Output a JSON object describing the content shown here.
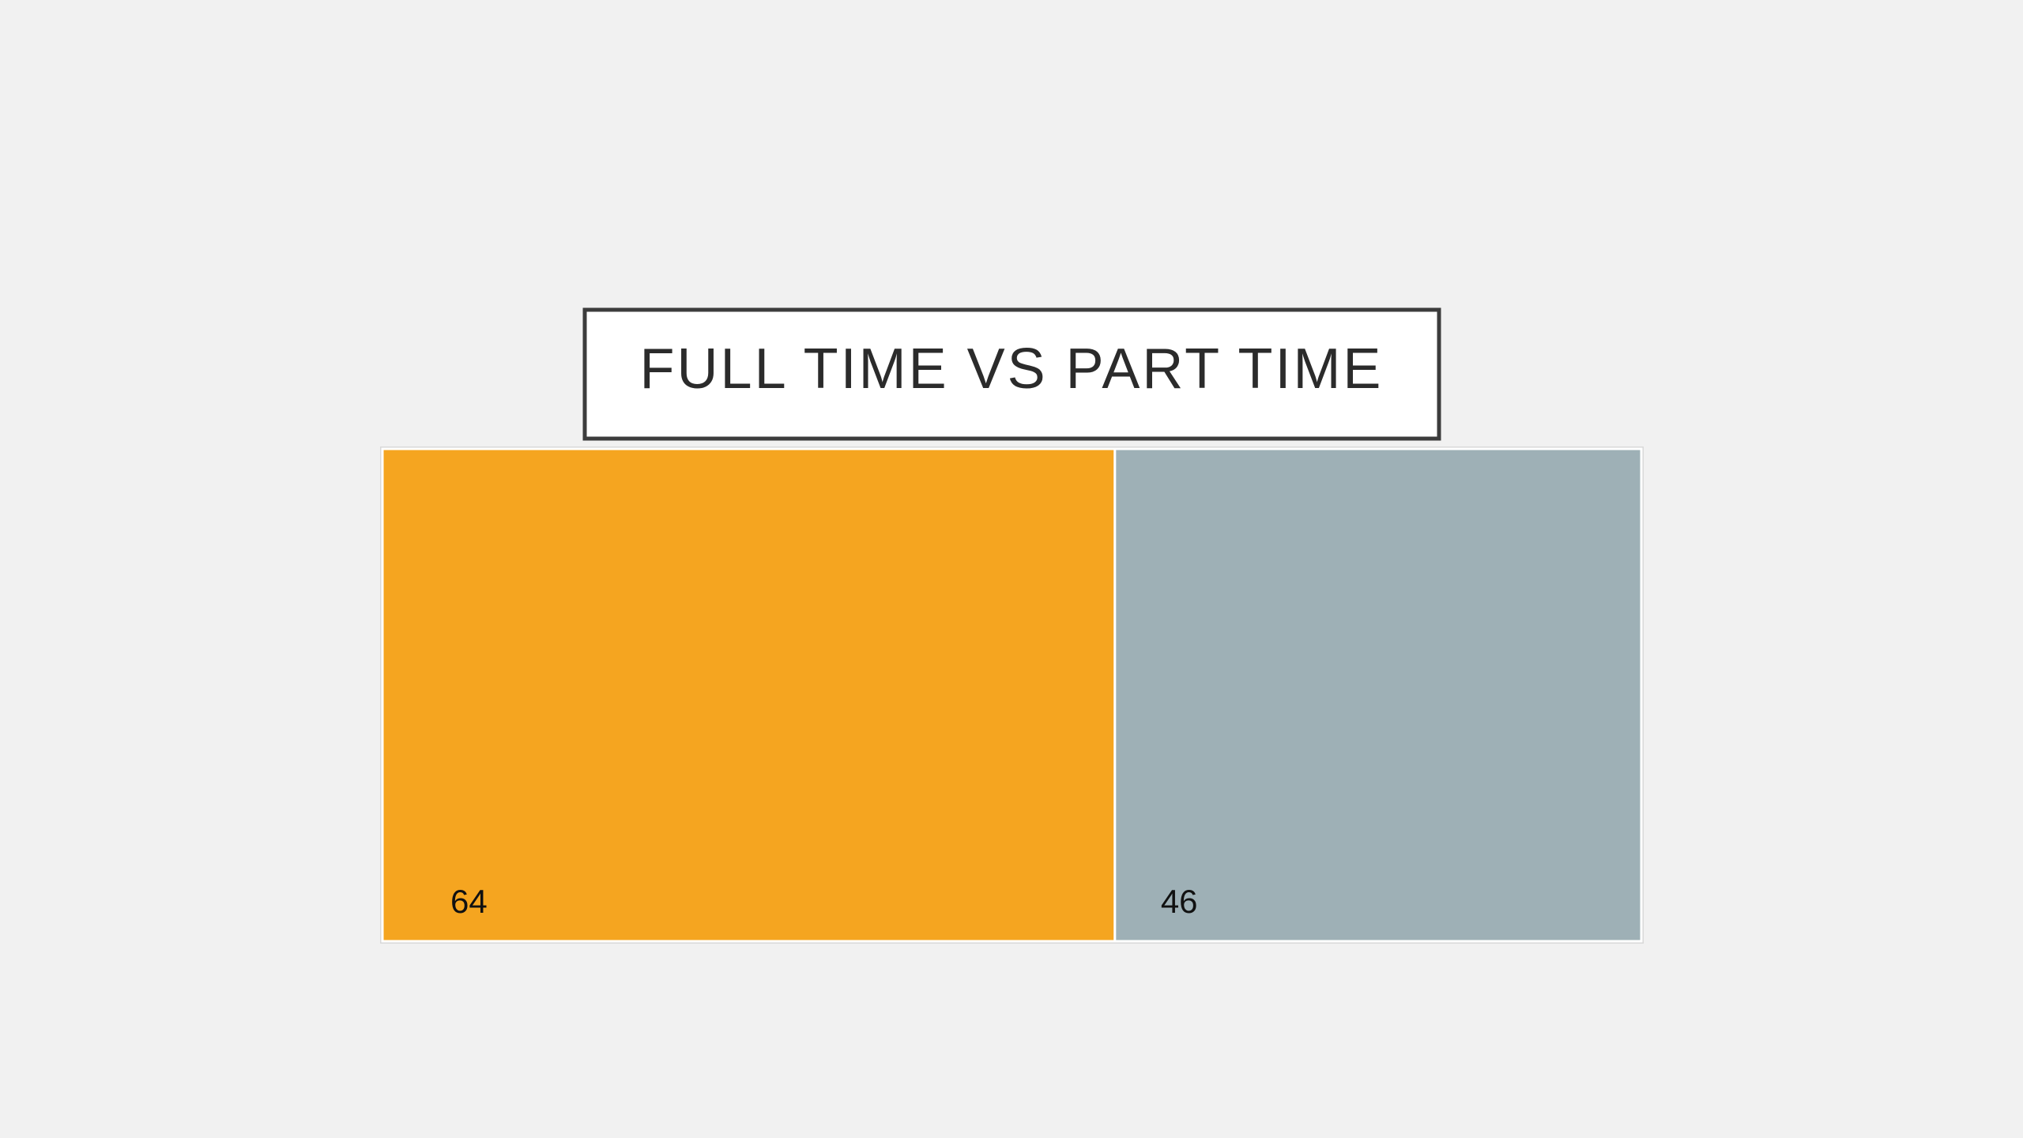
{
  "chart_data": {
    "type": "treemap",
    "title": "FULL TIME VS PART TIME",
    "values": [
      64,
      46
    ],
    "colors": [
      "#f5a520",
      "#9eb0b6"
    ]
  }
}
